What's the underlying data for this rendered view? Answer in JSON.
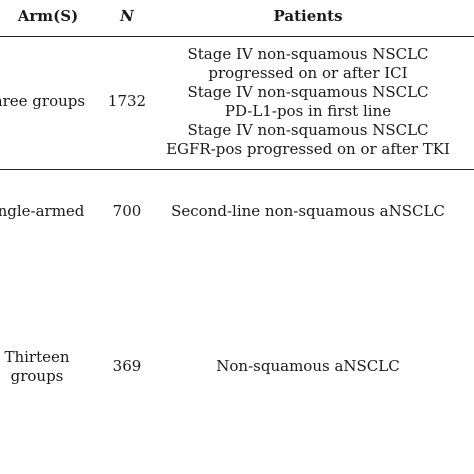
{
  "table": {
    "headers": {
      "arm": "Arm(S)",
      "n": "N",
      "patients": "Patients"
    },
    "rows": [
      {
        "arm": "hree groups",
        "n": "1732",
        "patients": [
          "Stage IV non-squamous NSCLC",
          "progressed on or after ICI",
          "Stage IV non-squamous NSCLC",
          "PD-L1-pos in first line",
          "Stage IV non-squamous NSCLC",
          "EGFR-pos progressed on or after TKI"
        ]
      },
      {
        "arm": "ngle-armed",
        "n": "700",
        "patients": [
          "Second-line non-squamous aNSCLC"
        ]
      },
      {
        "arm": [
          "Thirteen",
          "groups"
        ],
        "n": "369",
        "patients": [
          "Non-squamous aNSCLC"
        ]
      }
    ]
  }
}
